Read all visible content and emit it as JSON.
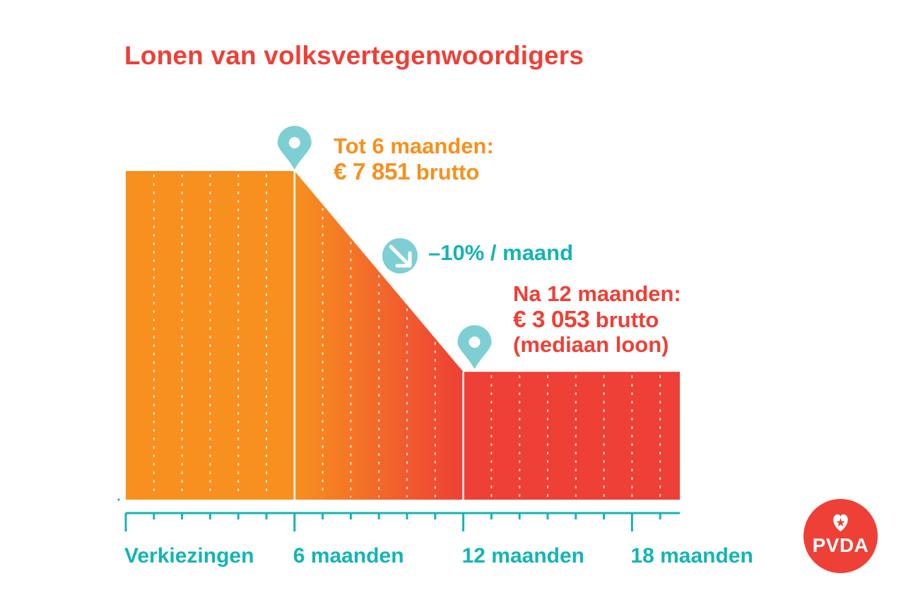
{
  "title": "Lonen van volksvertegenwoordigers",
  "callouts": {
    "first": {
      "line1": "Tot 6 maanden:",
      "amount": "€ 7 851",
      "suffix": " brutto"
    },
    "second": {
      "line1": "Na 12 maanden:",
      "amount": "€ 3 053",
      "suffix": " brutto",
      "line3": "(mediaan loon)"
    },
    "rate": "–10% / maand"
  },
  "logo": {
    "text": "PVDA"
  },
  "colors": {
    "orange": "#f7901e",
    "red": "#ee4036",
    "teal": "#14b4b4",
    "pin": "#7dcfd3"
  },
  "icons": {
    "pin": "map-pin-icon",
    "rate": "arrow-down-right-icon",
    "logo": "heart-star-icon"
  },
  "chart_data": {
    "type": "area",
    "x_unit": "maanden",
    "xlim": [
      0,
      19
    ],
    "ylim": [
      0,
      7851
    ],
    "x": [
      0,
      6,
      12,
      12.4,
      19.7
    ],
    "y": [
      7851,
      7851,
      3053,
      3053,
      3053
    ],
    "tick_labels": [
      {
        "x": 0,
        "label": "Verkiezingen"
      },
      {
        "x": 6,
        "label": "6 maanden"
      },
      {
        "x": 12,
        "label": "12 maanden"
      },
      {
        "x": 18,
        "label": "18 maanden"
      }
    ],
    "annotations": [
      {
        "x": 6,
        "value": 7851,
        "text": "Tot 6 maanden: € 7 851 brutto"
      },
      {
        "x": 12,
        "value": 3053,
        "text": "Na 12 maanden: € 3 053 brutto (mediaan loon)"
      }
    ]
  }
}
